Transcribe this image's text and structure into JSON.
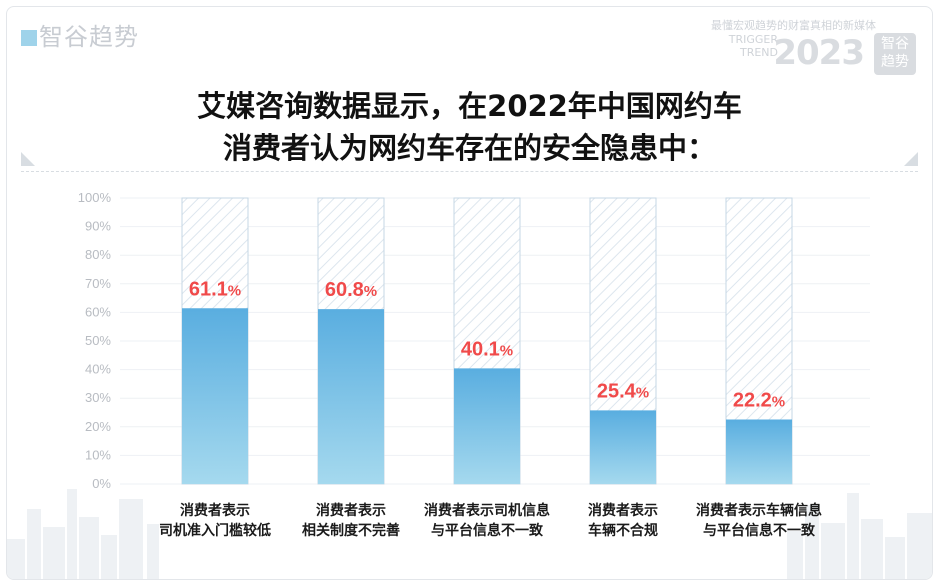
{
  "header": {
    "logo_text": "智谷趋势",
    "slogan": "最懂宏观趋势的财富真相的新媒体",
    "brand_en_1": "TRIGGER",
    "brand_en_2": "TREND",
    "year": "2023",
    "badge_1": "智谷",
    "badge_2": "趋势"
  },
  "title": {
    "line1": "艾媒咨询数据显示，在2022年中国网约车",
    "line2": "消费者认为网约车存在的安全隐患中："
  },
  "colors": {
    "bar_top": "#5aaee0",
    "bar_bottom": "#a5d9ee",
    "track_stroke": "#c6d7e4",
    "label": "#f04a4a",
    "tick": "#b8bcc2"
  },
  "chart_data": {
    "type": "bar",
    "title": "艾媒咨询数据显示，在2022年中国网约车消费者认为网约车存在的安全隐患中：",
    "categories": [
      [
        "消费者表示",
        "司机准入门槛较低"
      ],
      [
        "消费者表示",
        "相关制度不完善"
      ],
      [
        "消费者表示司机信息",
        "与平台信息不一致"
      ],
      [
        "消费者表示",
        "车辆不合规"
      ],
      [
        "消费者表示车辆信息",
        "与平台信息不一致"
      ]
    ],
    "values": [
      61.1,
      60.8,
      40.1,
      25.4,
      22.2
    ],
    "value_labels": [
      "61.1",
      "60.8",
      "40.1",
      "25.4",
      "22.2"
    ],
    "value_suffix": "%",
    "ylim": [
      0,
      100
    ],
    "yticks": [
      "0%",
      "10%",
      "20%",
      "30%",
      "40%",
      "50%",
      "60%",
      "70%",
      "80%",
      "90%",
      "100%"
    ],
    "xlabel": "",
    "ylabel": "",
    "grid": true
  }
}
